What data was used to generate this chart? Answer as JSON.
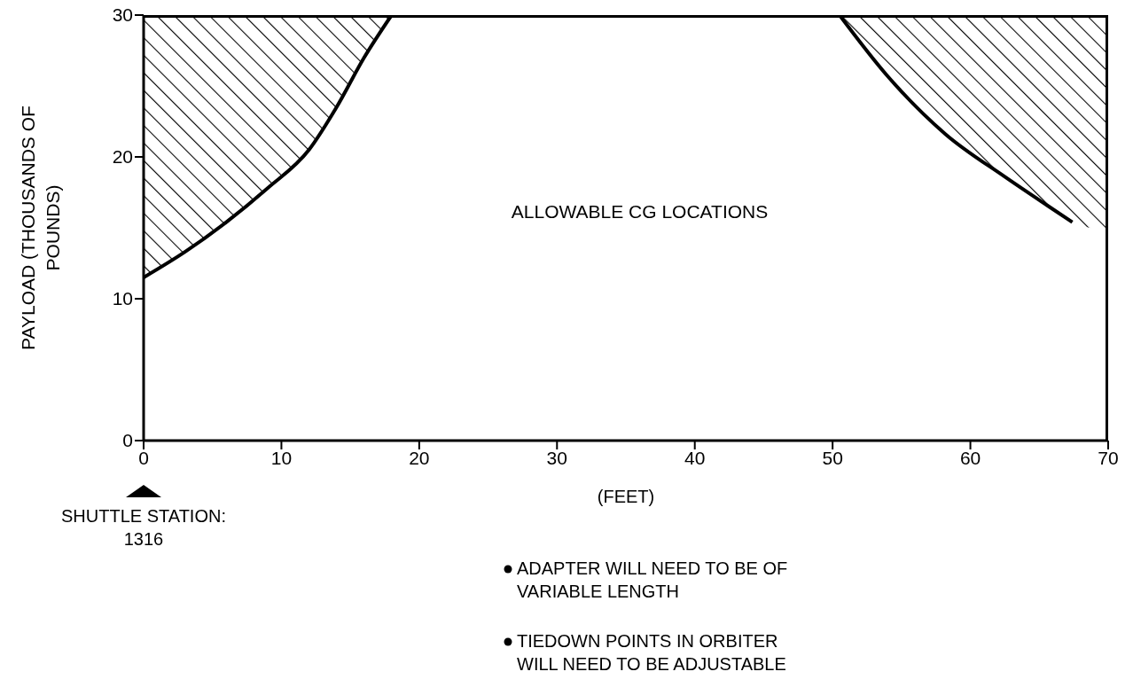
{
  "chart_data": {
    "type": "line",
    "xlabel": "(FEET)",
    "ylabel": "PAYLOAD (THOUSANDS OF POUNDS)",
    "xlim": [
      0,
      70
    ],
    "xticks": [
      0,
      10,
      20,
      30,
      40,
      50,
      60,
      70
    ],
    "ylim": [
      0,
      30
    ],
    "yticks": [
      0,
      10,
      20,
      30
    ],
    "grid": false,
    "series": [
      {
        "color": "#000000",
        "x": [
          0,
          3,
          6,
          9,
          12,
          14,
          16,
          18
        ],
        "values": [
          11.5,
          13.3,
          15.4,
          17.8,
          20.5,
          23.5,
          27,
          30
        ],
        "lower": [
          11.5,
          13.3,
          15.4,
          17.8,
          20.5,
          23.5,
          27,
          30
        ],
        "upper": [
          30,
          30,
          30,
          30,
          30,
          30,
          30,
          30
        ]
      },
      {
        "color": "#000000",
        "x": [
          50.5,
          53.9,
          58.2,
          62.5,
          65.7,
          67.4,
          70
        ],
        "values": [
          30,
          25.8,
          21.6,
          18.6,
          16.5,
          15.4,
          null
        ],
        "lower": [
          30,
          25.8,
          21.6,
          18.6,
          16.5,
          15.4,
          14.8
        ],
        "upper": [
          30,
          30,
          30,
          30,
          30,
          30,
          30
        ]
      }
    ],
    "annotations": [
      "ALLOWABLE CG LOCATIONS",
      "SHUTTLE STATION: 1316",
      "ADAPTER WILL NEED TO BE OF VARIABLE LENGTH",
      "TIEDOWN POINTS IN ORBITER WILL NEED TO BE ADJUSTABLE"
    ]
  }
}
